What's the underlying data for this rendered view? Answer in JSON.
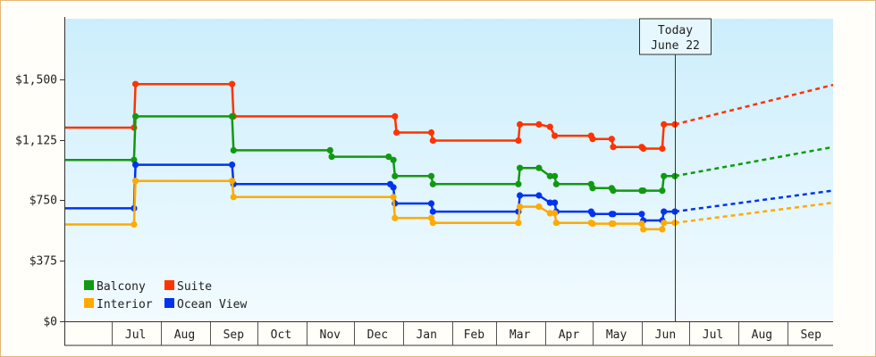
{
  "chart_data": {
    "type": "line",
    "title": "",
    "xlabel": "",
    "ylabel": "",
    "ylim": [
      0,
      1875
    ],
    "y_ticks": [
      0,
      375,
      750,
      1125,
      1500
    ],
    "y_tick_labels": [
      "$0",
      "$375",
      "$750",
      "$1,125",
      "$1,500"
    ],
    "x_range": [
      "2021-06-01",
      "2022-09-30"
    ],
    "x_tick_labels": [
      "Jul",
      "Aug",
      "Sep",
      "Oct",
      "Nov",
      "Dec",
      "Jan",
      "Feb",
      "Mar",
      "Apr",
      "May",
      "Jun",
      "Jul",
      "Aug",
      "Sep"
    ],
    "x_tick_label_dates": [
      "2021-07-16",
      "2021-08-16",
      "2021-09-16",
      "2021-10-16",
      "2021-11-16",
      "2021-12-16",
      "2022-01-16",
      "2022-02-15",
      "2022-03-16",
      "2022-04-16",
      "2022-05-16",
      "2022-06-16",
      "2022-07-16",
      "2022-08-16",
      "2022-09-16"
    ],
    "month_boundaries": [
      "2021-07-01",
      "2021-08-01",
      "2021-09-01",
      "2021-10-01",
      "2021-11-01",
      "2021-12-01",
      "2022-01-01",
      "2022-02-01",
      "2022-03-01",
      "2022-04-01",
      "2022-05-01",
      "2022-06-01",
      "2022-07-01",
      "2022-08-01",
      "2022-09-01"
    ],
    "grid": false,
    "legend_position": "bottom-left",
    "today_marker": {
      "date": "2022-06-22",
      "line1": "Today",
      "line2": "June 22"
    },
    "series": [
      {
        "name": "Suite",
        "color": "#ff3300",
        "points": [
          [
            "2021-06-01",
            1200
          ],
          [
            "2021-07-15",
            1200
          ],
          [
            "2021-07-16",
            1470
          ],
          [
            "2021-09-15",
            1470
          ],
          [
            "2021-09-16",
            1270
          ],
          [
            "2021-12-27",
            1270
          ],
          [
            "2021-12-28",
            1170
          ],
          [
            "2022-01-19",
            1170
          ],
          [
            "2022-01-20",
            1120
          ],
          [
            "2022-03-15",
            1120
          ],
          [
            "2022-03-16",
            1220
          ],
          [
            "2022-03-28",
            1220
          ],
          [
            "2022-04-04",
            1205
          ],
          [
            "2022-04-07",
            1150
          ],
          [
            "2022-04-30",
            1150
          ],
          [
            "2022-05-01",
            1130
          ],
          [
            "2022-05-13",
            1130
          ],
          [
            "2022-05-14",
            1080
          ],
          [
            "2022-06-01",
            1080
          ],
          [
            "2022-06-02",
            1070
          ],
          [
            "2022-06-14",
            1070
          ],
          [
            "2022-06-15",
            1220
          ],
          [
            "2022-06-22",
            1220
          ]
        ],
        "forecast": [
          [
            "2022-06-22",
            1220
          ],
          [
            "2022-09-30",
            1465
          ]
        ]
      },
      {
        "name": "Balcony",
        "color": "#119911",
        "points": [
          [
            "2021-06-01",
            1000
          ],
          [
            "2021-07-15",
            1000
          ],
          [
            "2021-07-16",
            1270
          ],
          [
            "2021-09-15",
            1270
          ],
          [
            "2021-09-16",
            1060
          ],
          [
            "2021-11-16",
            1060
          ],
          [
            "2021-11-17",
            1020
          ],
          [
            "2021-12-23",
            1020
          ],
          [
            "2021-12-26",
            1000
          ],
          [
            "2021-12-27",
            900
          ],
          [
            "2022-01-19",
            900
          ],
          [
            "2022-01-20",
            850
          ],
          [
            "2022-03-15",
            850
          ],
          [
            "2022-03-16",
            950
          ],
          [
            "2022-03-28",
            950
          ],
          [
            "2022-04-04",
            900
          ],
          [
            "2022-04-07",
            900
          ],
          [
            "2022-04-08",
            850
          ],
          [
            "2022-04-30",
            850
          ],
          [
            "2022-05-01",
            825
          ],
          [
            "2022-05-13",
            825
          ],
          [
            "2022-05-14",
            810
          ],
          [
            "2022-06-01",
            810
          ],
          [
            "2022-06-02",
            810
          ],
          [
            "2022-06-14",
            810
          ],
          [
            "2022-06-15",
            900
          ],
          [
            "2022-06-22",
            900
          ]
        ],
        "forecast": [
          [
            "2022-06-22",
            900
          ],
          [
            "2022-09-30",
            1080
          ]
        ]
      },
      {
        "name": "Ocean View",
        "color": "#0033ee",
        "points": [
          [
            "2021-06-01",
            700
          ],
          [
            "2021-07-15",
            700
          ],
          [
            "2021-07-16",
            970
          ],
          [
            "2021-09-15",
            970
          ],
          [
            "2021-09-16",
            850
          ],
          [
            "2021-12-24",
            850
          ],
          [
            "2021-12-26",
            830
          ],
          [
            "2021-12-27",
            730
          ],
          [
            "2022-01-19",
            730
          ],
          [
            "2022-01-20",
            680
          ],
          [
            "2022-03-15",
            680
          ],
          [
            "2022-03-16",
            780
          ],
          [
            "2022-03-28",
            780
          ],
          [
            "2022-04-04",
            735
          ],
          [
            "2022-04-07",
            735
          ],
          [
            "2022-04-08",
            680
          ],
          [
            "2022-04-30",
            680
          ],
          [
            "2022-05-01",
            665
          ],
          [
            "2022-05-13",
            665
          ],
          [
            "2022-05-14",
            665
          ],
          [
            "2022-06-01",
            665
          ],
          [
            "2022-06-02",
            625
          ],
          [
            "2022-06-14",
            625
          ],
          [
            "2022-06-15",
            680
          ],
          [
            "2022-06-22",
            680
          ]
        ],
        "forecast": [
          [
            "2022-06-22",
            680
          ],
          [
            "2022-09-30",
            810
          ]
        ]
      },
      {
        "name": "Interior",
        "color": "#ffaa00",
        "points": [
          [
            "2021-06-01",
            600
          ],
          [
            "2021-07-15",
            600
          ],
          [
            "2021-07-16",
            870
          ],
          [
            "2021-09-15",
            870
          ],
          [
            "2021-09-16",
            770
          ],
          [
            "2021-12-26",
            770
          ],
          [
            "2021-12-27",
            640
          ],
          [
            "2022-01-19",
            640
          ],
          [
            "2022-01-20",
            610
          ],
          [
            "2022-03-15",
            610
          ],
          [
            "2022-03-16",
            710
          ],
          [
            "2022-03-28",
            710
          ],
          [
            "2022-04-04",
            670
          ],
          [
            "2022-04-07",
            670
          ],
          [
            "2022-04-08",
            610
          ],
          [
            "2022-04-30",
            610
          ],
          [
            "2022-05-01",
            605
          ],
          [
            "2022-05-13",
            605
          ],
          [
            "2022-05-14",
            605
          ],
          [
            "2022-06-01",
            605
          ],
          [
            "2022-06-02",
            570
          ],
          [
            "2022-06-14",
            570
          ],
          [
            "2022-06-15",
            610
          ],
          [
            "2022-06-22",
            610
          ]
        ],
        "forecast": [
          [
            "2022-06-22",
            610
          ],
          [
            "2022-09-30",
            735
          ]
        ]
      }
    ],
    "legend": [
      {
        "series": "Balcony",
        "color": "#119911"
      },
      {
        "series": "Suite",
        "color": "#ff3300"
      },
      {
        "series": "Interior",
        "color": "#ffaa00"
      },
      {
        "series": "Ocean View",
        "color": "#0033ee"
      }
    ]
  }
}
